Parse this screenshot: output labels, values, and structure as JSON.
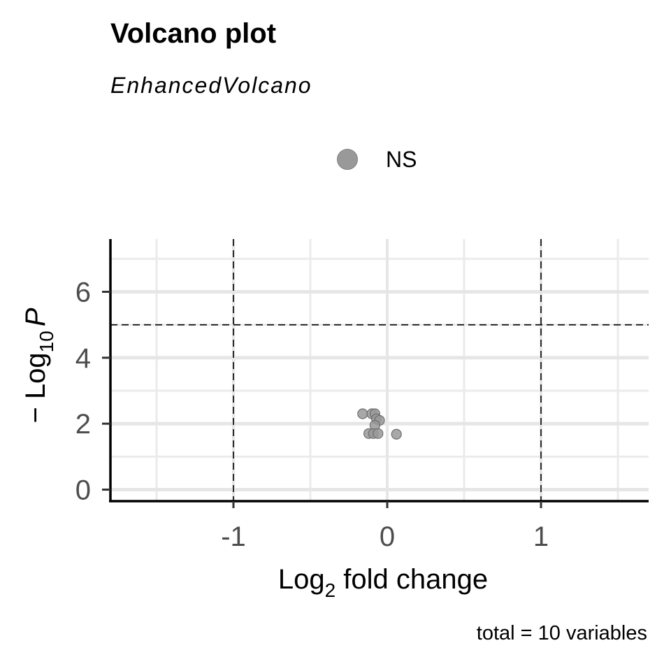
{
  "chart_data": {
    "type": "scatter",
    "title": "Volcano plot",
    "subtitle": "EnhancedVolcano",
    "caption": "total = 10 variables",
    "xlabel": {
      "base": "Log",
      "sub": "2",
      "rest": " fold change"
    },
    "ylabel": {
      "prefix": "− Log",
      "sub": "10",
      "italic": "P"
    },
    "xlim": [
      -1.8,
      1.7
    ],
    "ylim": [
      -0.35,
      7.6
    ],
    "xticks": [
      -1,
      0,
      1
    ],
    "xtick_labels": [
      "-1",
      "0",
      "1"
    ],
    "yticks": [
      0,
      2,
      4,
      6
    ],
    "ytick_labels": [
      "0",
      "2",
      "4",
      "6"
    ],
    "x_minor_grid": [
      -1.5,
      -0.5,
      0.5,
      1.5
    ],
    "y_minor_grid": [
      1,
      3,
      5,
      7
    ],
    "cutoffs": {
      "fc_vlines": [
        -1,
        1
      ],
      "p_hline": 5
    },
    "grid": true,
    "legend": {
      "position": "top",
      "entries": [
        {
          "name": "NS",
          "color": "#999999"
        }
      ]
    },
    "series": [
      {
        "name": "NS",
        "color": "#999999",
        "points": [
          {
            "x": -0.16,
            "y": 2.3
          },
          {
            "x": -0.1,
            "y": 2.3
          },
          {
            "x": -0.08,
            "y": 2.3
          },
          {
            "x": -0.07,
            "y": 2.15
          },
          {
            "x": -0.05,
            "y": 2.1
          },
          {
            "x": -0.08,
            "y": 1.95
          },
          {
            "x": -0.12,
            "y": 1.7
          },
          {
            "x": -0.09,
            "y": 1.7
          },
          {
            "x": -0.06,
            "y": 1.7
          },
          {
            "x": 0.06,
            "y": 1.68
          }
        ]
      }
    ]
  }
}
